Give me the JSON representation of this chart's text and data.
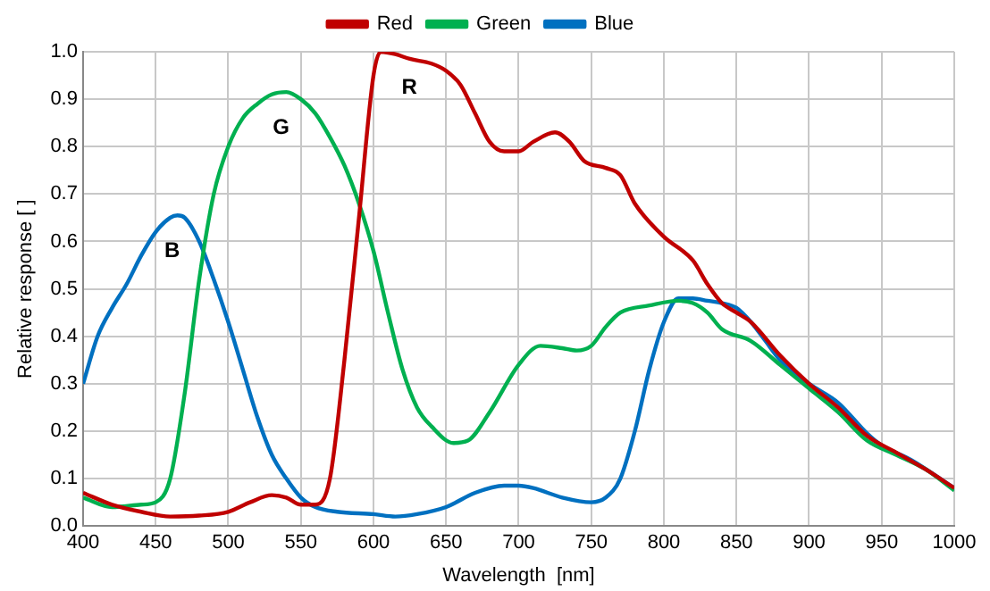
{
  "chart_data": {
    "type": "line",
    "xlabel": "Wavelength  [nm]",
    "ylabel": "Relative response [ ]",
    "xlim": [
      400,
      1000
    ],
    "xticks": [
      400,
      450,
      500,
      550,
      600,
      650,
      700,
      750,
      800,
      850,
      900,
      950,
      1000
    ],
    "ylim": [
      0,
      1
    ],
    "yticks": [
      {
        "value": 0,
        "label": "0.0"
      },
      0.1,
      0.2,
      0.3,
      0.4,
      0.5,
      0.6,
      0.7,
      0.8,
      0.9,
      {
        "value": 1,
        "label": "1.0"
      }
    ],
    "grid": true,
    "legend": "top",
    "marker": "none",
    "line_style": "solid",
    "annotations": [
      "R",
      "G",
      "B"
    ],
    "series": [
      {
        "name": "Red",
        "color": "#c00000",
        "x": [
          400,
          420,
          440,
          460,
          480,
          500,
          515,
          530,
          540,
          550,
          560,
          570,
          580,
          590,
          600,
          605,
          615,
          625,
          640,
          650,
          660,
          670,
          680,
          690,
          700,
          710,
          725,
          735,
          745,
          760,
          770,
          780,
          800,
          820,
          830,
          840,
          850,
          860,
          880,
          900,
          920,
          940,
          960,
          980,
          1000
        ],
        "values": [
          0.07,
          0.045,
          0.03,
          0.02,
          0.022,
          0.03,
          0.05,
          0.065,
          0.06,
          0.045,
          0.045,
          0.1,
          0.35,
          0.65,
          0.95,
          1.0,
          0.995,
          0.985,
          0.975,
          0.96,
          0.93,
          0.87,
          0.81,
          0.79,
          0.79,
          0.81,
          0.83,
          0.81,
          0.77,
          0.755,
          0.74,
          0.68,
          0.61,
          0.56,
          0.51,
          0.47,
          0.45,
          0.43,
          0.36,
          0.3,
          0.25,
          0.19,
          0.155,
          0.12,
          0.08
        ]
      },
      {
        "name": "Green",
        "color": "#00b050",
        "x": [
          400,
          420,
          440,
          450,
          460,
          470,
          480,
          490,
          500,
          510,
          520,
          530,
          540,
          550,
          560,
          570,
          580,
          590,
          600,
          610,
          620,
          630,
          640,
          655,
          665,
          680,
          700,
          715,
          730,
          740,
          750,
          760,
          770,
          790,
          810,
          820,
          830,
          840,
          860,
          880,
          900,
          920,
          940,
          960,
          980,
          1000
        ],
        "values": [
          0.06,
          0.04,
          0.045,
          0.05,
          0.1,
          0.28,
          0.52,
          0.7,
          0.8,
          0.86,
          0.89,
          0.91,
          0.915,
          0.9,
          0.87,
          0.82,
          0.76,
          0.68,
          0.58,
          0.45,
          0.33,
          0.25,
          0.21,
          0.175,
          0.18,
          0.24,
          0.34,
          0.38,
          0.375,
          0.37,
          0.38,
          0.42,
          0.45,
          0.465,
          0.475,
          0.47,
          0.45,
          0.415,
          0.39,
          0.34,
          0.29,
          0.24,
          0.18,
          0.15,
          0.12,
          0.075
        ]
      },
      {
        "name": "Blue",
        "color": "#0070c0",
        "x": [
          400,
          410,
          420,
          430,
          440,
          450,
          460,
          465,
          470,
          480,
          490,
          500,
          510,
          520,
          530,
          540,
          550,
          560,
          575,
          600,
          615,
          630,
          650,
          670,
          690,
          700,
          710,
          730,
          750,
          760,
          770,
          780,
          790,
          800,
          810,
          820,
          830,
          840,
          850,
          860,
          870,
          880,
          900,
          920,
          940,
          950,
          970,
          1000
        ],
        "values": [
          0.3,
          0.4,
          0.46,
          0.51,
          0.57,
          0.62,
          0.65,
          0.655,
          0.65,
          0.6,
          0.52,
          0.43,
          0.33,
          0.23,
          0.15,
          0.1,
          0.06,
          0.04,
          0.03,
          0.025,
          0.02,
          0.025,
          0.04,
          0.07,
          0.085,
          0.085,
          0.08,
          0.06,
          0.05,
          0.06,
          0.1,
          0.2,
          0.33,
          0.43,
          0.48,
          0.48,
          0.475,
          0.47,
          0.46,
          0.43,
          0.39,
          0.35,
          0.3,
          0.26,
          0.195,
          0.17,
          0.14,
          0.08
        ]
      }
    ]
  }
}
